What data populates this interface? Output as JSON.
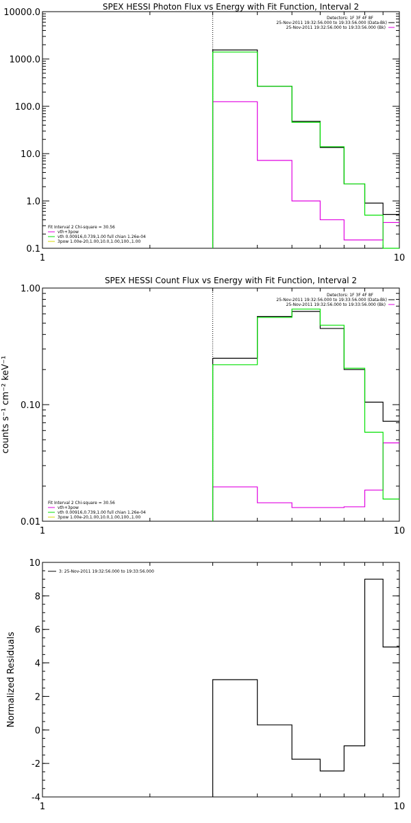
{
  "colors": {
    "background": "#ffffff",
    "axis": "#000000",
    "data": "#000000",
    "model": "#00e000",
    "background_model": "#e000e0",
    "yellow": "#d8d800"
  },
  "chart_data": [
    {
      "type": "line",
      "title": "SPEX HESSI Photon Flux vs Energy with Fit Function, Interval 2",
      "xscale": "log",
      "yscale": "log",
      "xlim": [
        1,
        10
      ],
      "ylim": [
        0.1,
        10000
      ],
      "x_ticks": [
        "1",
        "10"
      ],
      "y_ticks": [
        {
          "v": 10000,
          "t": "10000.0"
        },
        {
          "v": 1000,
          "t": "1000.0"
        },
        {
          "v": 100,
          "t": "100.0"
        },
        {
          "v": 10,
          "t": "10.0"
        },
        {
          "v": 1,
          "t": "1.0"
        },
        {
          "v": 0.1,
          "t": "0.1"
        }
      ],
      "vline_x": 3,
      "header_lines": [
        "Detectors: 1F 3F 4F 8F",
        "25-Nov-2011 19:32:56.000 to 19:33:56.000 (Data-Bk)",
        "25-Nov-2011 19:32:56.000 to 19:33:56.000 (Bk)"
      ],
      "fit_lines": [
        "Fit Interval 2   Chi-square = 30.56",
        "vth+3pow",
        "vth 0.00916,0.739,1.00  full chian 1.26e-04",
        "3pow 1.00e-20,1.00,10.0,1.00,100.,1.00"
      ],
      "edges": [
        3,
        4,
        5,
        6,
        7,
        8,
        9,
        10
      ],
      "series": [
        {
          "name": "Data-Bk",
          "color": "#000000",
          "values": [
            1550,
            265,
            48,
            13.5,
            2.3,
            0.9,
            0.52
          ]
        },
        {
          "name": "vth+3pow",
          "color": "#00e000",
          "values": [
            1400,
            265,
            46,
            14,
            2.3,
            0.5,
            0.1
          ]
        },
        {
          "name": "Bk",
          "color": "#e000e0",
          "values": [
            125,
            7.2,
            1.0,
            0.4,
            0.15,
            0.15,
            0.35
          ]
        }
      ]
    },
    {
      "type": "line",
      "title": "SPEX HESSI Count Flux vs Energy with Fit Function, Interval 2",
      "ylabel": "counts s⁻¹ cm⁻² keV⁻¹",
      "xscale": "log",
      "yscale": "log",
      "xlim": [
        1,
        10
      ],
      "ylim": [
        0.01,
        1.0
      ],
      "x_ticks": [
        "1",
        "10"
      ],
      "y_ticks": [
        {
          "v": 1.0,
          "t": "1.00"
        },
        {
          "v": 0.1,
          "t": "0.10"
        },
        {
          "v": 0.01,
          "t": "0.01"
        }
      ],
      "vline_x": 3,
      "header_lines": [
        "Detectors: 1F 3F 4F 8F",
        "25-Nov-2011 19:32:56.000 to 19:33:56.000 (Data-Bk)",
        "25-Nov-2011 19:32:56.000 to 19:33:56.000 (Bk)"
      ],
      "fit_lines": [
        "Fit Interval 2   Chi-square = 30.56",
        "vth+3pow",
        "vth 0.00916,0.739,1.00  full chian 1.26e-04",
        "3pow 1.00e-20,1.00,10.0,1.00,100.,1.00"
      ],
      "edges": [
        3,
        4,
        5,
        6,
        7,
        8,
        9,
        10
      ],
      "series": [
        {
          "name": "Data-Bk",
          "color": "#000000",
          "values": [
            0.25,
            0.57,
            0.63,
            0.45,
            0.2,
            0.105,
            0.072
          ]
        },
        {
          "name": "vth+3pow",
          "color": "#00e000",
          "values": [
            0.22,
            0.56,
            0.66,
            0.48,
            0.205,
            0.058,
            0.0155
          ]
        },
        {
          "name": "Bk",
          "color": "#e000e0",
          "values": [
            0.0197,
            0.0144,
            0.0131,
            0.0131,
            0.0133,
            0.0185,
            0.047
          ]
        }
      ]
    },
    {
      "type": "line",
      "title": "",
      "ylabel": "Normalized Residuals",
      "xscale": "log",
      "yscale": "linear",
      "xlim": [
        1,
        10
      ],
      "ylim": [
        -4,
        10
      ],
      "x_ticks": [
        "1",
        "10"
      ],
      "y_ticks": [
        {
          "v": 10,
          "t": "10"
        },
        {
          "v": 8,
          "t": "8"
        },
        {
          "v": 6,
          "t": "6"
        },
        {
          "v": 4,
          "t": "4"
        },
        {
          "v": 2,
          "t": "2"
        },
        {
          "v": 0,
          "t": "0"
        },
        {
          "v": -2,
          "t": "-2"
        },
        {
          "v": -4,
          "t": "-4"
        }
      ],
      "legend": "3: 25-Nov-2011 19:32:56.000 to 19:33:56.000",
      "edges": [
        3,
        4,
        5,
        6,
        7,
        8,
        9,
        10
      ],
      "series": [
        {
          "name": "3: 25-Nov-2011 19:32:56.000 to 19:33:56.000",
          "color": "#000000",
          "values": [
            3.0,
            0.3,
            -1.75,
            -2.45,
            -0.95,
            9.0,
            4.95
          ]
        }
      ]
    }
  ]
}
